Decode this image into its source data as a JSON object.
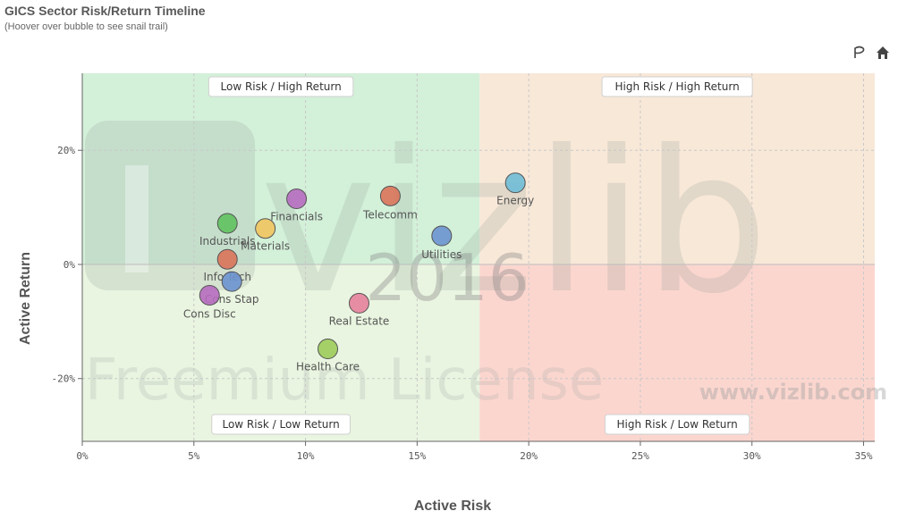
{
  "header": {
    "title": "GICS Sector Risk/Return Timeline",
    "subtitle": "(Hoover over bubble to see snail trail)"
  },
  "toolbar": {
    "icons": [
      "lasso-icon",
      "home-icon"
    ]
  },
  "watermark": {
    "brand": "vizlib",
    "year": "2016",
    "license": "Freemium License",
    "url": "www.vizlib.com"
  },
  "chart_data": {
    "type": "scatter",
    "title": "GICS Sector Risk/Return Timeline",
    "subtitle": "(Hoover over bubble to see snail trail)",
    "xlabel": "Active Risk",
    "ylabel": "Active Return",
    "xlim": [
      0,
      35.5
    ],
    "ylim": [
      -31,
      33.5
    ],
    "x_ticks": [
      0,
      5,
      10,
      15,
      20,
      25,
      30,
      35
    ],
    "x_tick_labels": [
      "0%",
      "5%",
      "10%",
      "15%",
      "20%",
      "25%",
      "30%",
      "35%"
    ],
    "y_ticks": [
      20,
      0,
      -20
    ],
    "y_tick_labels": [
      "20%",
      "0%",
      "-20%"
    ],
    "grid": true,
    "quadrant_split": {
      "x": 17.8,
      "y": 0
    },
    "quadrants": [
      {
        "label": "Low Risk / High Return",
        "color": "#d3f0d9"
      },
      {
        "label": "High Risk / High Return",
        "color": "#f8e8d8"
      },
      {
        "label": "Low Risk / Low Return",
        "color": "#e9f5e0"
      },
      {
        "label": "High Risk / Low Return",
        "color": "#fbd6cf"
      }
    ],
    "points": [
      {
        "name": "Energy",
        "x": 19.4,
        "y": 14.3,
        "color": "#6fbcd6"
      },
      {
        "name": "Telecomm",
        "x": 13.8,
        "y": 12.0,
        "color": "#d9735a"
      },
      {
        "name": "Financials",
        "x": 9.6,
        "y": 11.5,
        "color": "#b66bbf"
      },
      {
        "name": "Utilities",
        "x": 16.1,
        "y": 5.0,
        "color": "#6b93cf"
      },
      {
        "name": "Industrials",
        "x": 6.5,
        "y": 7.2,
        "color": "#5fc15f"
      },
      {
        "name": "Materials",
        "x": 8.2,
        "y": 6.3,
        "color": "#f0c45e"
      },
      {
        "name": "Info Tech",
        "x": 6.5,
        "y": 0.9,
        "color": "#d9735a"
      },
      {
        "name": "Cons Stap",
        "x": 6.7,
        "y": -3.0,
        "color": "#6b93cf"
      },
      {
        "name": "Cons Disc",
        "x": 5.7,
        "y": -5.4,
        "color": "#b66bbf"
      },
      {
        "name": "Real Estate",
        "x": 12.4,
        "y": -6.8,
        "color": "#e7829c"
      },
      {
        "name": "Health Care",
        "x": 11.0,
        "y": -14.8,
        "color": "#9ccc5a"
      }
    ]
  }
}
